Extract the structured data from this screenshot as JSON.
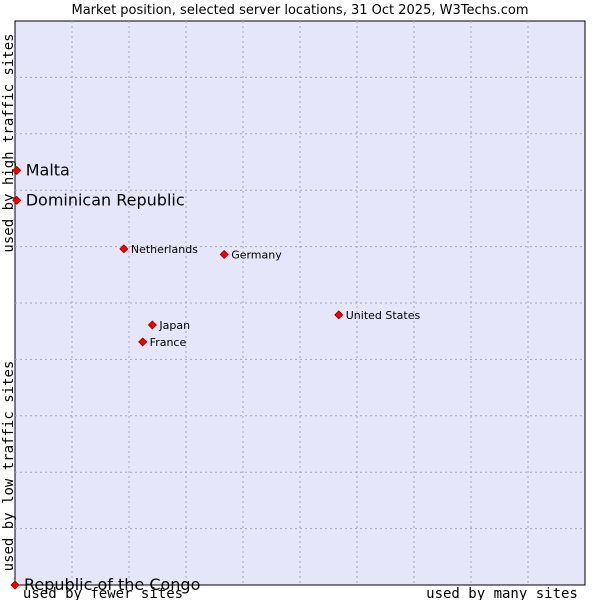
{
  "chart_data": {
    "type": "scatter",
    "title": "Market position, selected server locations, 31 Oct 2025, W3Techs.com",
    "xlabel_low": "used by fewer sites",
    "xlabel_high": "used by many sites",
    "ylabel_low": "used by low traffic sites",
    "ylabel_high": "used by high traffic sites",
    "xlim": [
      0,
      100
    ],
    "ylim": [
      0,
      100
    ],
    "grid": true,
    "marker_color": "#ee0000",
    "background_color": "#e6e6fa",
    "points": [
      {
        "label": "Malta",
        "x": 0.3,
        "y": 73.5,
        "emphasis": true
      },
      {
        "label": "Dominican Republic",
        "x": 0.3,
        "y": 68.2,
        "emphasis": true
      },
      {
        "label": "Netherlands",
        "x": 19.1,
        "y": 59.6,
        "emphasis": false
      },
      {
        "label": "Germany",
        "x": 36.7,
        "y": 58.6,
        "emphasis": false
      },
      {
        "label": "United States",
        "x": 56.8,
        "y": 47.9,
        "emphasis": false
      },
      {
        "label": "Japan",
        "x": 24.1,
        "y": 46.1,
        "emphasis": false
      },
      {
        "label": "France",
        "x": 22.4,
        "y": 43.1,
        "emphasis": false
      },
      {
        "label": "Republic of the Congo",
        "x": 0,
        "y": 0,
        "emphasis": true
      }
    ]
  }
}
